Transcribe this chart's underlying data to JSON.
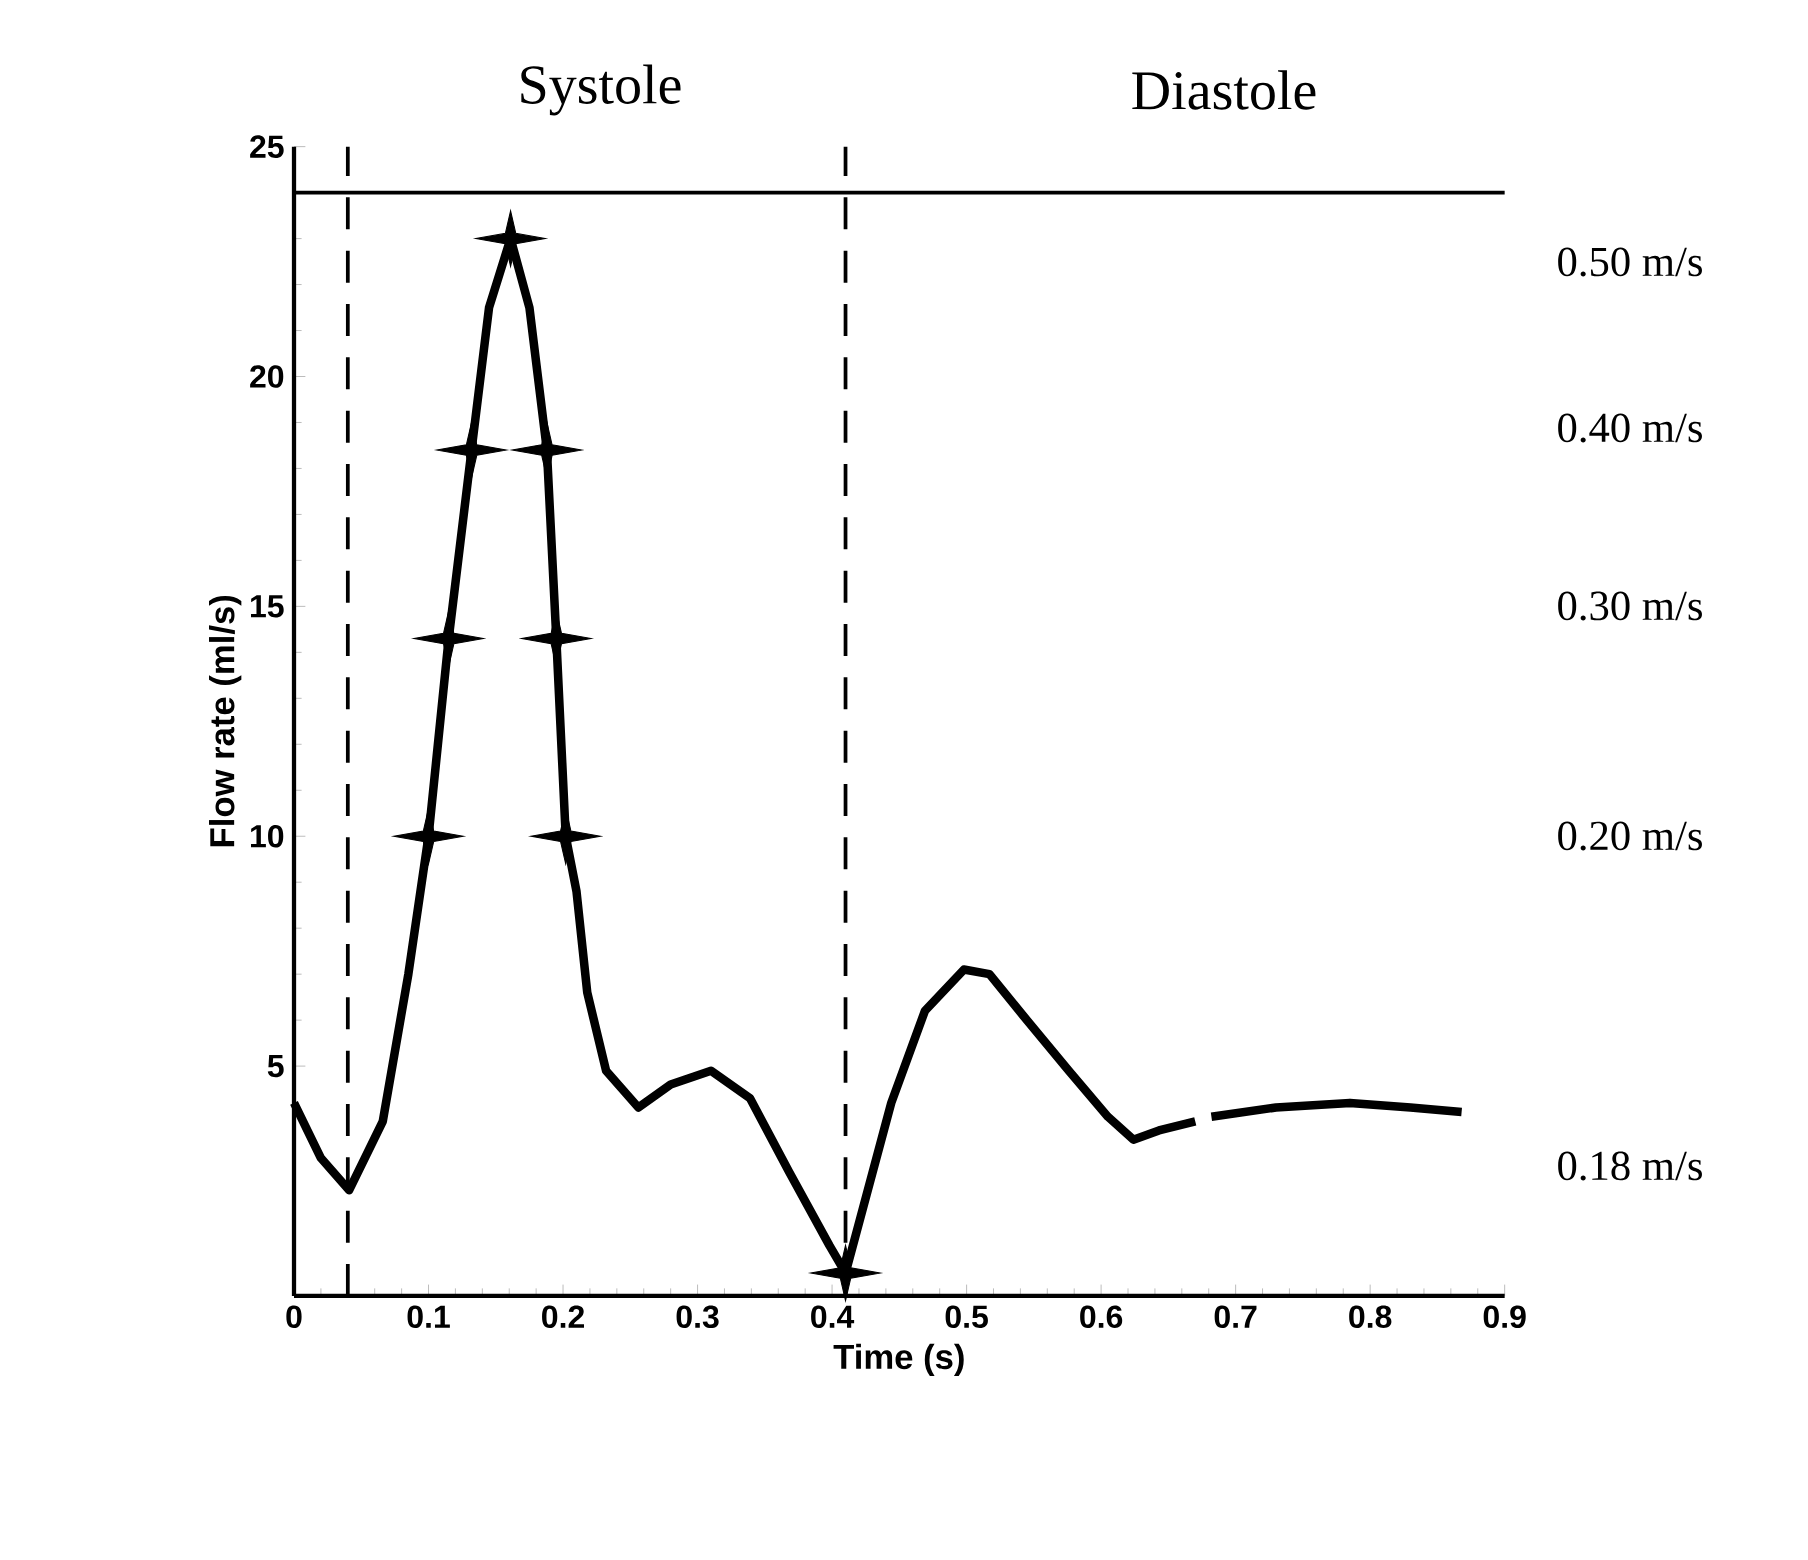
{
  "chart_data": {
    "type": "line",
    "xlabel": "Time (s)",
    "ylabel": "Flow rate (ml/s)",
    "xlim": [
      0,
      0.9
    ],
    "ylim": [
      0,
      25
    ],
    "xticks": [
      0,
      0.1,
      0.2,
      0.3,
      0.4,
      0.5,
      0.6,
      0.7,
      0.8,
      0.9
    ],
    "yticks": [
      5,
      10,
      15,
      20,
      25
    ],
    "grid": false,
    "series": [
      {
        "color": "#000000",
        "marker": "none",
        "line_style": "solid",
        "x": [
          0,
          0.02,
          0.041,
          0.066,
          0.085,
          0.1,
          0.115,
          0.132,
          0.145,
          0.161,
          0.175,
          0.188,
          0.195,
          0.202,
          0.21,
          0.218,
          0.232,
          0.256,
          0.28,
          0.31,
          0.339,
          0.368,
          0.398,
          0.41,
          0.444,
          0.469,
          0.498,
          0.517,
          0.542,
          0.576,
          0.605,
          0.624,
          0.643,
          0.67,
          0.676,
          0.682,
          0.73,
          0.785,
          0.83,
          0.868
        ],
        "values": [
          4.2,
          3.0,
          2.3,
          3.8,
          7.0,
          10,
          14.3,
          18.4,
          21.5,
          23,
          21.5,
          18.4,
          14.3,
          10,
          8.8,
          6.6,
          4.9,
          4.1,
          4.6,
          4.9,
          4.3,
          2.7,
          1.1,
          0.5,
          4.2,
          6.2,
          7.1,
          7.0,
          6.1,
          4.9,
          3.9,
          3.4,
          3.6,
          3.8,
          null,
          3.9,
          4.1,
          4.2,
          4.1,
          4.0
        ]
      },
      {
        "type": "scatter",
        "color": "#000000",
        "marker": "star",
        "x": [
          0.1,
          0.115,
          0.132,
          0.161,
          0.188,
          0.195,
          0.202,
          0.41
        ],
        "values": [
          10,
          14.3,
          18.4,
          23,
          18.4,
          14.3,
          10,
          0.5
        ]
      }
    ],
    "ref_lines": [
      {
        "axis": "x",
        "value": 0.04,
        "line_style": "dashed"
      },
      {
        "axis": "x",
        "value": 0.41,
        "line_style": "dashed"
      },
      {
        "axis": "y",
        "value": 24,
        "line_style": "solid"
      }
    ],
    "annotations": [
      "Systole",
      "Diastole",
      "0.50 m/s",
      "0.40 m/s",
      "0.30 m/s",
      "0.20 m/s",
      "0.18 m/s"
    ]
  }
}
